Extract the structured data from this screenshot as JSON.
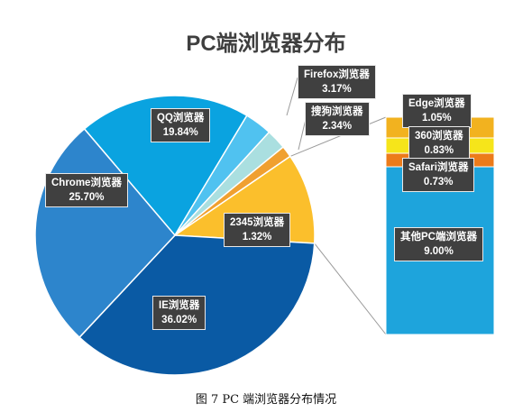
{
  "title": "PC端浏览器分布",
  "caption": "图 7 PC 端浏览器分布情况",
  "colors": {
    "qq": "#0aa3e0",
    "firefox": "#50c2f0",
    "sogou": "#aadfe0",
    "s2345_wedge": "#f0a030",
    "bar_group": "#fbbf2c",
    "chrome": "#2d85cc",
    "ie": "#0a5aa4",
    "bar_main": "#1ea4dc",
    "bar_edge": "#f2b21f",
    "bar_360": "#f6e51a",
    "bar_safari": "#ec7b1a"
  },
  "chart_data": {
    "type": "bar-of-pie",
    "title": "PC端浏览器分布",
    "pie": [
      {
        "label": "QQ浏览器",
        "value": "19.84%"
      },
      {
        "label": "Firefox浏览器",
        "value": "3.17%"
      },
      {
        "label": "搜狗浏览器",
        "value": "2.34%"
      },
      {
        "label": "2345浏览器",
        "value": "1.32%"
      },
      {
        "label": "IE浏览器",
        "value": "36.02%"
      },
      {
        "label": "Chrome浏览器",
        "value": "25.70%"
      }
    ],
    "bar": [
      {
        "label": "Edge浏览器",
        "value": "1.05%"
      },
      {
        "label": "360浏览器",
        "value": "0.83%"
      },
      {
        "label": "Safari浏览器",
        "value": "0.73%"
      },
      {
        "label": "其他PC端浏览器",
        "value": "9.00%"
      }
    ]
  }
}
